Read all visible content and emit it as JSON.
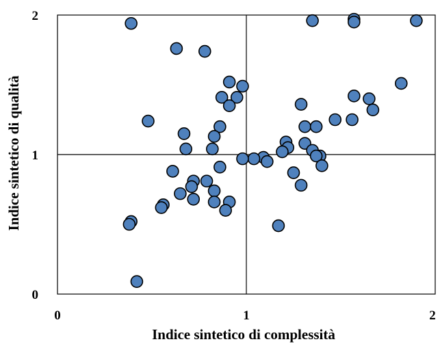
{
  "chart_data": {
    "type": "scatter",
    "xlabel": "Indice sintetico di complessità",
    "ylabel": "Indice sintetico di qualità",
    "xlim": [
      0,
      2
    ],
    "ylim": [
      0,
      2
    ],
    "x_ticks": [
      {
        "value": 0,
        "label": "0"
      },
      {
        "value": 1,
        "label": "1"
      },
      {
        "value": 2,
        "label": "2"
      }
    ],
    "y_ticks": [
      {
        "value": 0,
        "label": "0"
      },
      {
        "value": 1,
        "label": "1"
      },
      {
        "value": 2,
        "label": "2"
      }
    ],
    "reference_lines": {
      "x": 1,
      "y": 1
    },
    "grid": false,
    "marker_color": "#4f81bd",
    "points": [
      [
        0.39,
        1.94
      ],
      [
        0.63,
        1.76
      ],
      [
        0.78,
        1.74
      ],
      [
        1.35,
        1.96
      ],
      [
        1.57,
        1.97
      ],
      [
        1.57,
        1.95
      ],
      [
        1.9,
        1.96
      ],
      [
        0.91,
        1.52
      ],
      [
        0.98,
        1.49
      ],
      [
        1.82,
        1.51
      ],
      [
        0.87,
        1.41
      ],
      [
        0.95,
        1.41
      ],
      [
        0.91,
        1.35
      ],
      [
        1.29,
        1.36
      ],
      [
        1.57,
        1.42
      ],
      [
        1.65,
        1.4
      ],
      [
        1.67,
        1.32
      ],
      [
        1.47,
        1.25
      ],
      [
        1.56,
        1.25
      ],
      [
        0.48,
        1.24
      ],
      [
        0.86,
        1.2
      ],
      [
        1.31,
        1.2
      ],
      [
        1.37,
        1.2
      ],
      [
        0.67,
        1.15
      ],
      [
        0.83,
        1.13
      ],
      [
        1.21,
        1.09
      ],
      [
        1.31,
        1.08
      ],
      [
        0.68,
        1.04
      ],
      [
        0.82,
        1.04
      ],
      [
        1.22,
        1.05
      ],
      [
        1.19,
        1.02
      ],
      [
        1.35,
        1.03
      ],
      [
        1.39,
        0.99
      ],
      [
        1.37,
        0.99
      ],
      [
        1.09,
        0.98
      ],
      [
        1.04,
        0.97
      ],
      [
        0.98,
        0.97
      ],
      [
        1.11,
        0.95
      ],
      [
        1.4,
        0.92
      ],
      [
        0.86,
        0.91
      ],
      [
        0.61,
        0.88
      ],
      [
        1.25,
        0.87
      ],
      [
        0.79,
        0.81
      ],
      [
        0.72,
        0.81
      ],
      [
        0.71,
        0.77
      ],
      [
        1.29,
        0.78
      ],
      [
        0.83,
        0.74
      ],
      [
        0.65,
        0.72
      ],
      [
        0.72,
        0.68
      ],
      [
        0.83,
        0.66
      ],
      [
        0.91,
        0.66
      ],
      [
        0.56,
        0.64
      ],
      [
        0.55,
        0.62
      ],
      [
        0.89,
        0.6
      ],
      [
        0.39,
        0.52
      ],
      [
        0.38,
        0.5
      ],
      [
        1.17,
        0.49
      ],
      [
        0.42,
        0.09
      ]
    ]
  }
}
